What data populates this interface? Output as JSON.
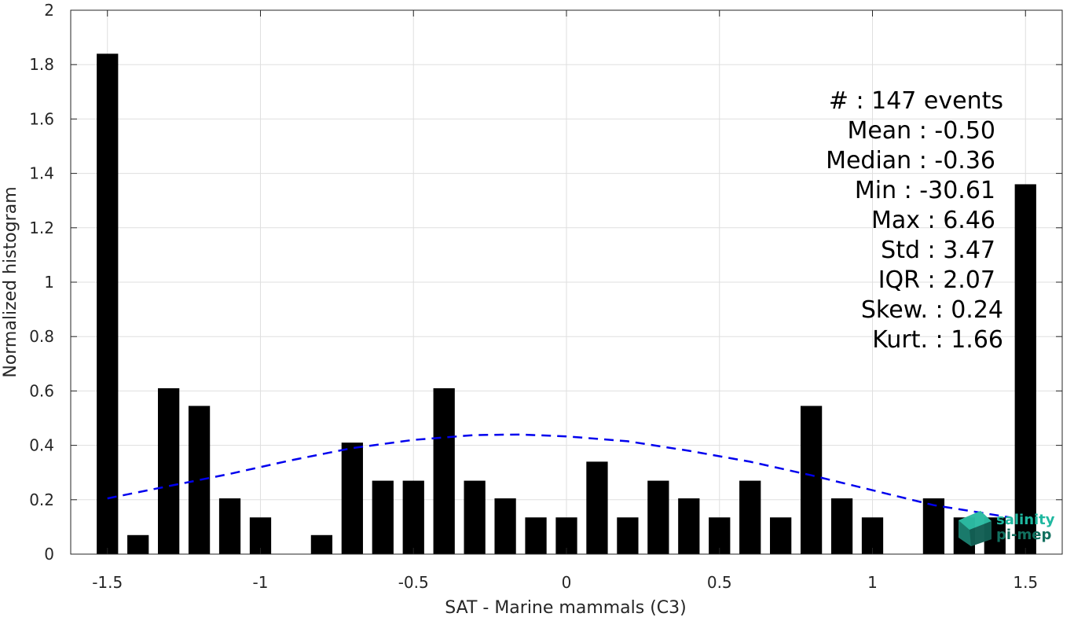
{
  "chart_data": {
    "type": "bar",
    "xlabel": "SAT - Marine mammals (C3)",
    "ylabel": "Normalized histogram",
    "xlim": [
      -1.62,
      1.62
    ],
    "ylim": [
      0,
      2
    ],
    "grid": true,
    "x_ticks": [
      -1.5,
      -1,
      -0.5,
      0,
      0.5,
      1,
      1.5
    ],
    "x_tick_labels": [
      "-1.5",
      "-1",
      "-0.5",
      "0",
      "0.5",
      "1",
      "1.5"
    ],
    "y_ticks": [
      0,
      0.2,
      0.4,
      0.6,
      0.8,
      1,
      1.2,
      1.4,
      1.6,
      1.8,
      2
    ],
    "y_tick_labels": [
      "0",
      "0.2",
      "0.4",
      "0.6",
      "0.8",
      "1",
      "1.2",
      "1.4",
      "1.6",
      "1.8",
      "2"
    ],
    "bar_width": 0.07,
    "bar_color": "#000000",
    "series": [
      {
        "x": [
          -1.5,
          -1.4,
          -1.3,
          -1.2,
          -1.1,
          -1.0,
          -0.9,
          -0.8,
          -0.7,
          -0.6,
          -0.5,
          -0.4,
          -0.3,
          -0.2,
          -0.1,
          0.0,
          0.1,
          0.2,
          0.3,
          0.4,
          0.5,
          0.6,
          0.7,
          0.8,
          0.9,
          1.0,
          1.1,
          1.2,
          1.3,
          1.4,
          1.5
        ],
        "values": [
          1.84,
          0.07,
          0.61,
          0.545,
          0.205,
          0.135,
          0,
          0.07,
          0.41,
          0.27,
          0.27,
          0.61,
          0.27,
          0.205,
          0.135,
          0.135,
          0.34,
          0.135,
          0.27,
          0.205,
          0.135,
          0.27,
          0.135,
          0.545,
          0.205,
          0.135,
          0,
          0.205,
          0.135,
          0.135,
          1.36
        ]
      }
    ],
    "fit_curve": {
      "style": "dashed",
      "color": "#0000ee",
      "x": [
        -1.5,
        -1.3,
        -1.1,
        -0.9,
        -0.7,
        -0.5,
        -0.3,
        -0.15,
        0,
        0.2,
        0.4,
        0.6,
        0.8,
        1.0,
        1.2,
        1.45
      ],
      "y": [
        0.205,
        0.25,
        0.295,
        0.345,
        0.39,
        0.42,
        0.438,
        0.44,
        0.433,
        0.415,
        0.38,
        0.34,
        0.29,
        0.235,
        0.18,
        0.135
      ]
    },
    "stats": [
      "#  : 147 events",
      "Mean : -0.50",
      "Median : -0.36",
      "Min : -30.61",
      "Max : 6.46",
      "Std : 3.47",
      "IQR : 2.07",
      "Skew. : 0.24",
      "Kurt. : 1.66"
    ]
  },
  "logo": {
    "line1": "salinity",
    "line2": "pi-mep",
    "color1": "#1fb8a0",
    "color2": "#12705f"
  }
}
